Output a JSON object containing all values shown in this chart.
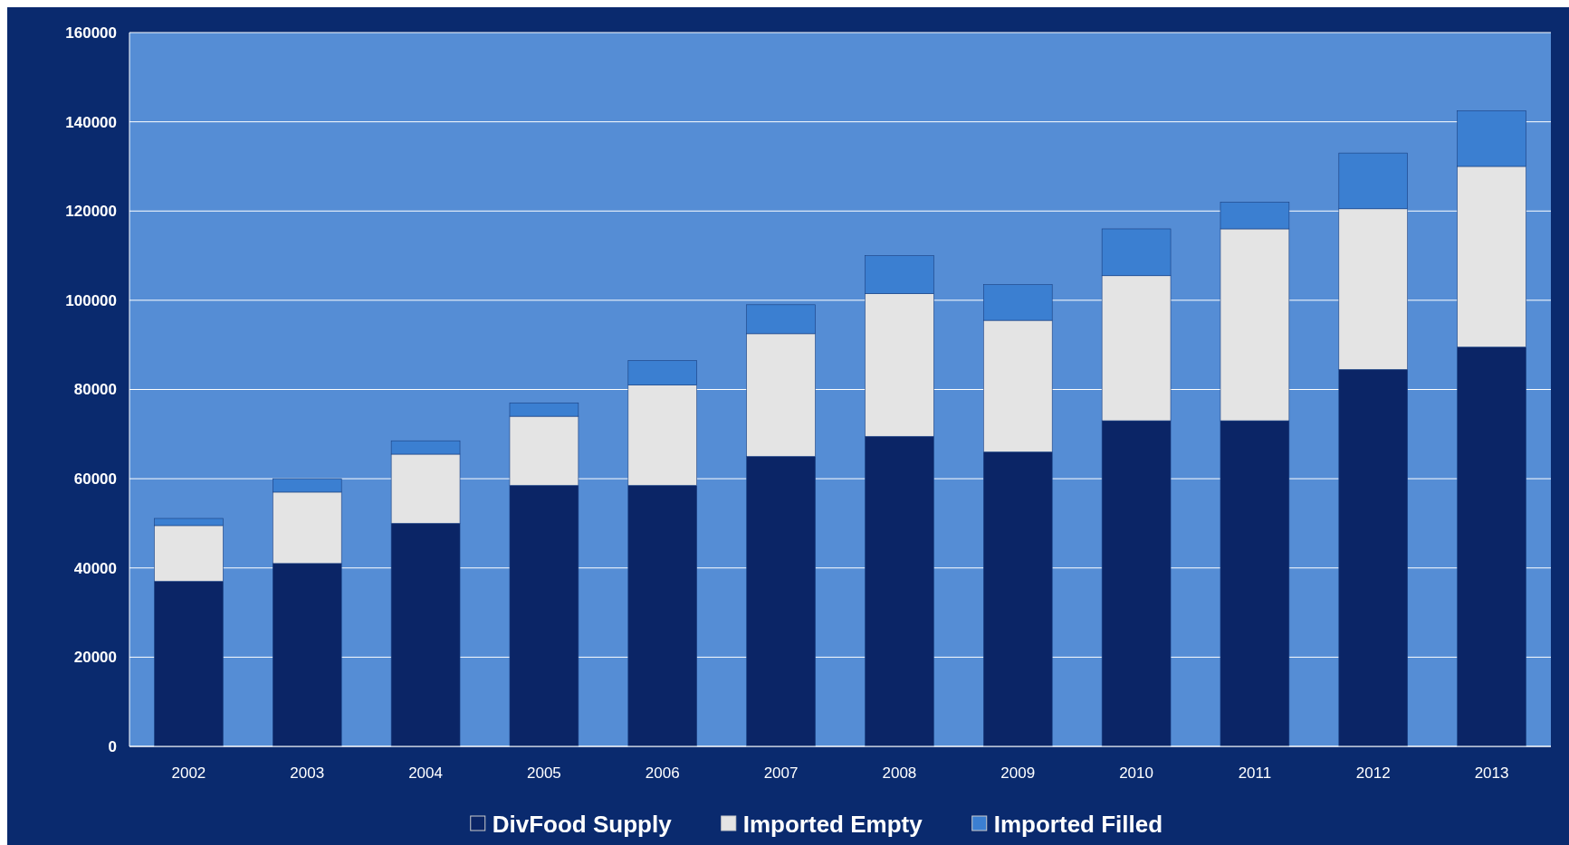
{
  "chart_data": {
    "type": "bar",
    "stacked": true,
    "categories": [
      "2002",
      "2003",
      "2004",
      "2005",
      "2006",
      "2007",
      "2008",
      "2009",
      "2010",
      "2011",
      "2012",
      "2013"
    ],
    "series": [
      {
        "name": "DivFood Supply",
        "color": "#0b2566",
        "values": [
          37000,
          41000,
          50000,
          58500,
          58500,
          65000,
          69500,
          66000,
          73000,
          73000,
          84500,
          89500
        ]
      },
      {
        "name": "Imported Empty",
        "color": "#e4e4e4",
        "values": [
          12500,
          16000,
          15500,
          15500,
          22500,
          27500,
          32000,
          29500,
          32500,
          43000,
          36000,
          40500
        ]
      },
      {
        "name": "Imported Filled",
        "color": "#3b7fd1",
        "values": [
          1600,
          3000,
          3000,
          3000,
          5500,
          6500,
          8500,
          8000,
          10500,
          6000,
          12500,
          12500
        ]
      }
    ],
    "ylim": [
      0,
      160000
    ],
    "yticks": [
      0,
      20000,
      40000,
      60000,
      80000,
      100000,
      120000,
      140000,
      160000
    ],
    "grid": "y",
    "legend": "bottom"
  }
}
